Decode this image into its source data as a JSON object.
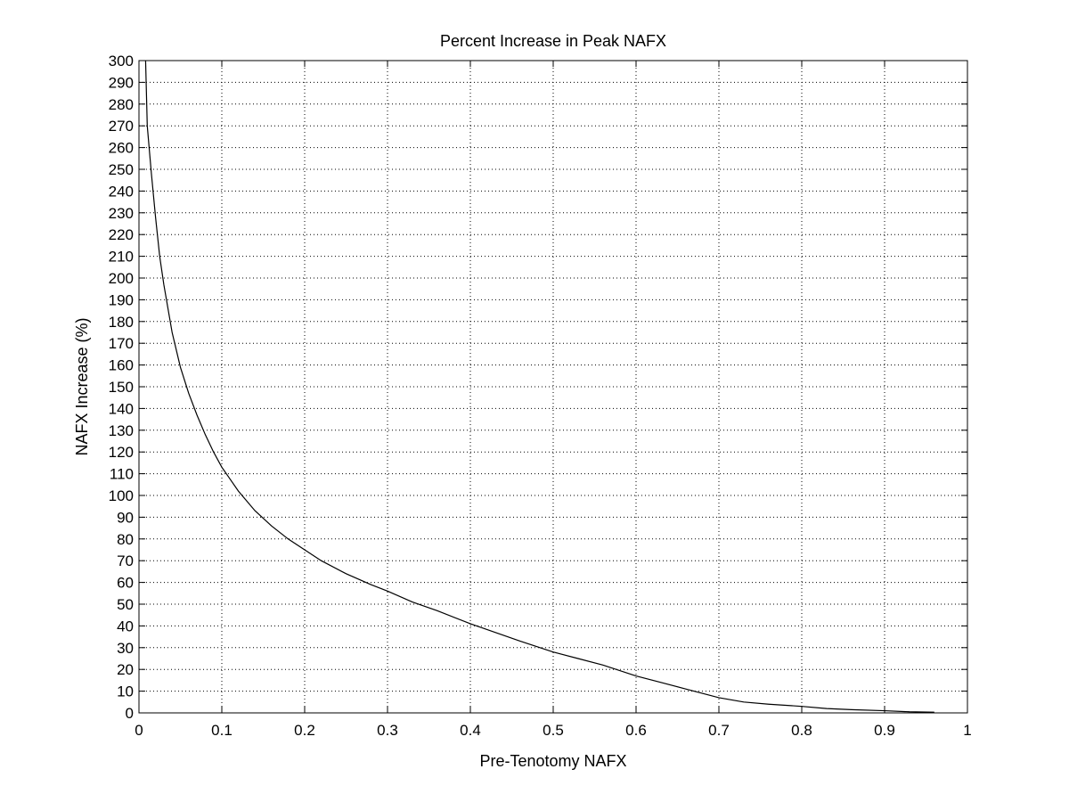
{
  "chart_data": {
    "type": "line",
    "title": "Percent Increase in Peak NAFX",
    "xlabel": "Pre-Tenotomy NAFX",
    "ylabel": "NAFX Increase (%)",
    "xlim": [
      0,
      1
    ],
    "ylim": [
      0,
      300
    ],
    "grid": true,
    "legend": "none",
    "x_ticks": [
      "0",
      "0.1",
      "0.2",
      "0.3",
      "0.4",
      "0.5",
      "0.6",
      "0.7",
      "0.8",
      "0.9",
      "1"
    ],
    "y_ticks": [
      "0",
      "10",
      "20",
      "30",
      "40",
      "50",
      "60",
      "70",
      "80",
      "90",
      "100",
      "110",
      "120",
      "130",
      "140",
      "150",
      "160",
      "170",
      "180",
      "190",
      "200",
      "210",
      "220",
      "230",
      "240",
      "250",
      "260",
      "270",
      "280",
      "290",
      "300"
    ],
    "series": [
      {
        "x": [
          0.008,
          0.01,
          0.015,
          0.02,
          0.025,
          0.03,
          0.04,
          0.05,
          0.06,
          0.07,
          0.08,
          0.09,
          0.1,
          0.12,
          0.14,
          0.16,
          0.18,
          0.2,
          0.22,
          0.25,
          0.28,
          0.3,
          0.33,
          0.36,
          0.4,
          0.43,
          0.46,
          0.5,
          0.53,
          0.56,
          0.6,
          0.63,
          0.66,
          0.7,
          0.73,
          0.76,
          0.8,
          0.83,
          0.86,
          0.9,
          0.93,
          0.96
        ],
        "values": [
          300,
          270,
          248,
          228,
          210,
          197,
          175,
          159,
          147,
          137,
          128,
          120,
          113,
          102,
          93,
          86,
          80,
          75,
          70,
          64,
          59,
          56,
          51,
          47,
          41,
          37,
          33,
          28,
          25,
          22,
          17,
          14,
          11,
          7,
          5,
          4,
          3,
          2,
          1.5,
          1,
          0.5,
          0.3
        ]
      }
    ],
    "colors": {
      "line": "#000000",
      "background": "#ffffff"
    }
  }
}
